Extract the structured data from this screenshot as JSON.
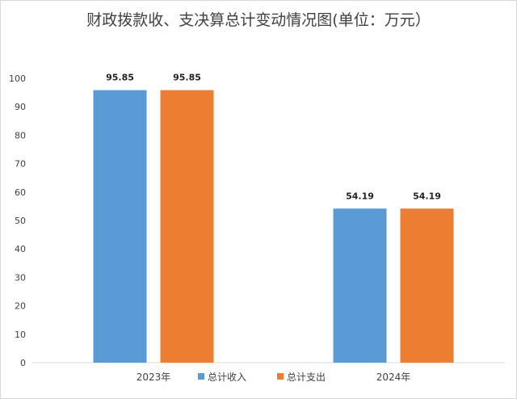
{
  "chart_data": {
    "type": "bar",
    "title": "财政拨款收、支决算总计变动情况图(单位：万元）",
    "categories": [
      "2023年",
      "2024年"
    ],
    "series": [
      {
        "name": "总计收入",
        "values": [
          95.85,
          54.19
        ],
        "color": "#5b9bd5"
      },
      {
        "name": "总计支出",
        "values": [
          95.85,
          54.19
        ],
        "color": "#ed7d31"
      }
    ],
    "yticks": [
      0,
      10,
      20,
      30,
      40,
      50,
      60,
      70,
      80,
      90,
      100
    ],
    "ylim": [
      0,
      100
    ],
    "xlabel": "",
    "ylabel": "",
    "grid": false,
    "legend": "bottom"
  }
}
